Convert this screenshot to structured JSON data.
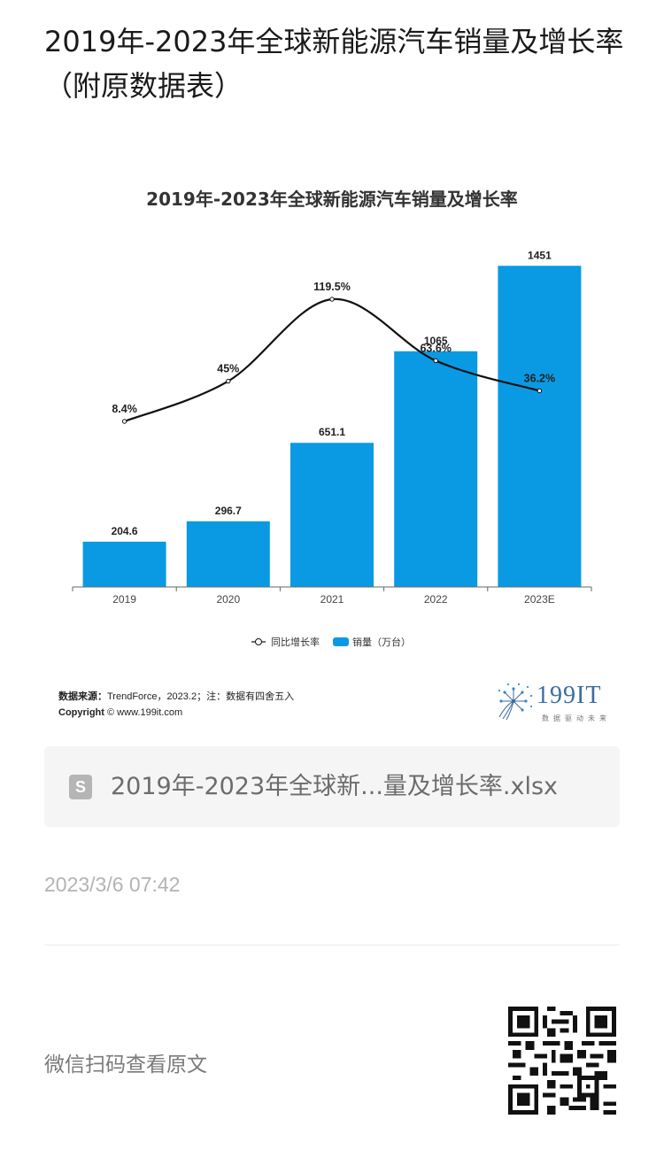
{
  "page": {
    "title": "2019年-2023年全球新能源汽车销量及增长率（附原数据表）",
    "file_name": "2019年-2023年全球新...量及增长率.xlsx",
    "file_icon_letter": "S",
    "post_time": "2023/3/6 07:42",
    "read_original": "微信扫码查看原文"
  },
  "footer": {
    "source_label": "数据来源：",
    "source_text": "TrendForce，2023.2；注：数据有四舍五入",
    "copyright_label": "Copyright",
    "copyright_text": "© www.199it.com",
    "brand_name": "199IT",
    "brand_tagline": "数据驱动未来"
  },
  "chart_data": {
    "type": "bar",
    "title": "2019年-2023年全球新能源汽车销量及增长率",
    "categories": [
      "2019",
      "2020",
      "2021",
      "2022",
      "2023E"
    ],
    "series": [
      {
        "name": "销量（万台）",
        "kind": "bar",
        "color": "#0a9ae3",
        "values": [
          204.6,
          296.7,
          651.1,
          1065,
          1451
        ],
        "labels": [
          "204.6",
          "296.7",
          "651.1",
          "1065",
          "1451"
        ]
      },
      {
        "name": "同比增长率",
        "kind": "line",
        "color": "#111111",
        "values": [
          8.4,
          45,
          119.5,
          63.6,
          36.2
        ],
        "labels": [
          "8.4%",
          "45%",
          "119.5%",
          "63.6%",
          "36.2%"
        ]
      }
    ],
    "legend": {
      "position": "bottom"
    },
    "grid": false,
    "y_range_bars": [
      0,
      1800
    ],
    "y_range_line": [
      0,
      130
    ]
  }
}
